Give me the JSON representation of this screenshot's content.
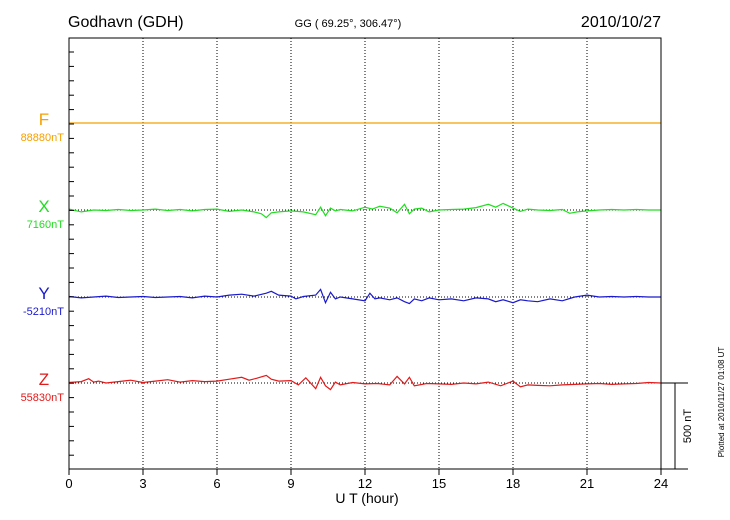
{
  "header": {
    "station": "Godhavn (GDH)",
    "coords": "GG ( 69.25°, 306.47°)",
    "date": "2010/10/27"
  },
  "footer": {
    "plotted": "Plotted at 2010/11/27 01:08 UT"
  },
  "chart_data": {
    "type": "line",
    "xlabel": "U T (hour)",
    "xlim": [
      0,
      24
    ],
    "xticks": [
      0,
      3,
      6,
      9,
      12,
      15,
      18,
      21,
      24
    ],
    "grid": "vertical dotted",
    "scale_bar": {
      "label": "500 nT",
      "nT": 500
    },
    "series": [
      {
        "name": "F",
        "baseline_label": "88880nT",
        "color": "#f5a000",
        "x": [
          0,
          24
        ],
        "values": [
          0,
          0
        ]
      },
      {
        "name": "X",
        "baseline_label": "7160nT",
        "color": "#22dd22",
        "x": [
          0,
          0.5,
          1,
          1.5,
          2,
          2.5,
          3,
          3.5,
          4,
          4.5,
          5,
          5.5,
          6,
          6.5,
          7,
          7.5,
          7.8,
          8,
          8.2,
          8.5,
          9,
          9.5,
          10,
          10.2,
          10.4,
          10.6,
          10.8,
          11,
          11.5,
          12,
          12.3,
          12.6,
          13,
          13.3,
          13.6,
          13.8,
          14,
          14.3,
          14.6,
          15,
          15.5,
          16,
          16.5,
          17,
          17.3,
          17.6,
          18,
          18.3,
          18.6,
          19,
          19.5,
          20,
          20.3,
          20.6,
          21,
          21.5,
          22,
          22.5,
          23,
          23.5,
          24
        ],
        "values": [
          10,
          -20,
          0,
          -5,
          5,
          -5,
          0,
          10,
          -5,
          5,
          -10,
          5,
          10,
          -15,
          0,
          -20,
          -40,
          -80,
          -30,
          -20,
          -10,
          -20,
          -50,
          30,
          -60,
          20,
          -10,
          5,
          -10,
          30,
          10,
          40,
          20,
          -30,
          60,
          -40,
          10,
          20,
          -20,
          0,
          5,
          10,
          25,
          60,
          30,
          70,
          20,
          -15,
          10,
          0,
          -5,
          5,
          -35,
          -20,
          -10,
          0,
          5,
          0,
          5,
          0,
          0
        ]
      },
      {
        "name": "Y",
        "baseline_label": "-5210nT",
        "color": "#1a1acc",
        "x": [
          0,
          0.5,
          1,
          1.5,
          2,
          2.5,
          3,
          3.5,
          4,
          4.5,
          5,
          5.5,
          6,
          6.5,
          7,
          7.5,
          8,
          8.2,
          8.5,
          9,
          9.2,
          9.5,
          10,
          10.2,
          10.4,
          10.6,
          10.8,
          11,
          11.5,
          12,
          12.2,
          12.4,
          12.6,
          13,
          13.3,
          13.6,
          13.8,
          14,
          14.3,
          14.6,
          15,
          15.5,
          16,
          16.5,
          17,
          17.3,
          17.6,
          18,
          18.3,
          18.6,
          19,
          19.5,
          20,
          20.5,
          21,
          21.5,
          22,
          22.5,
          23,
          23.5,
          24
        ],
        "values": [
          5,
          -10,
          0,
          10,
          -5,
          0,
          5,
          -5,
          0,
          5,
          -10,
          10,
          0,
          20,
          30,
          10,
          40,
          60,
          20,
          10,
          -20,
          5,
          20,
          80,
          -60,
          50,
          -20,
          0,
          -20,
          -40,
          40,
          -20,
          -10,
          -30,
          -10,
          -50,
          -70,
          -20,
          -40,
          -10,
          -30,
          -20,
          -40,
          -10,
          -20,
          -50,
          -30,
          -60,
          -30,
          -40,
          -50,
          -20,
          -40,
          0,
          20,
          0,
          5,
          0,
          5,
          0,
          0
        ]
      },
      {
        "name": "Z",
        "baseline_label": "55830nT",
        "color": "#e21a1a",
        "x": [
          0,
          0.5,
          0.8,
          1,
          1.2,
          1.5,
          2,
          2.5,
          3,
          3.5,
          4,
          4.5,
          5,
          5.5,
          6,
          6.5,
          7,
          7.3,
          7.6,
          8,
          8.2,
          8.5,
          9,
          9.3,
          9.6,
          10,
          10.2,
          10.4,
          10.6,
          10.8,
          11,
          11.5,
          12,
          12.5,
          13,
          13.3,
          13.6,
          13.8,
          14,
          14.5,
          15,
          15.5,
          16,
          16.5,
          17,
          17.5,
          18,
          18.3,
          18.6,
          19,
          19.5,
          20,
          20.5,
          21,
          21.5,
          22,
          22.5,
          23,
          23.5,
          24
        ],
        "values": [
          5,
          15,
          45,
          10,
          20,
          0,
          15,
          30,
          5,
          20,
          35,
          10,
          25,
          15,
          20,
          40,
          60,
          30,
          50,
          80,
          40,
          20,
          25,
          -20,
          55,
          -60,
          60,
          -30,
          -70,
          10,
          -20,
          5,
          -10,
          -5,
          -20,
          70,
          -10,
          60,
          -30,
          -5,
          -10,
          -15,
          0,
          -10,
          10,
          -30,
          20,
          -40,
          -20,
          -25,
          -30,
          -20,
          -15,
          -10,
          -5,
          -15,
          -10,
          -5,
          5,
          0
        ]
      }
    ]
  }
}
